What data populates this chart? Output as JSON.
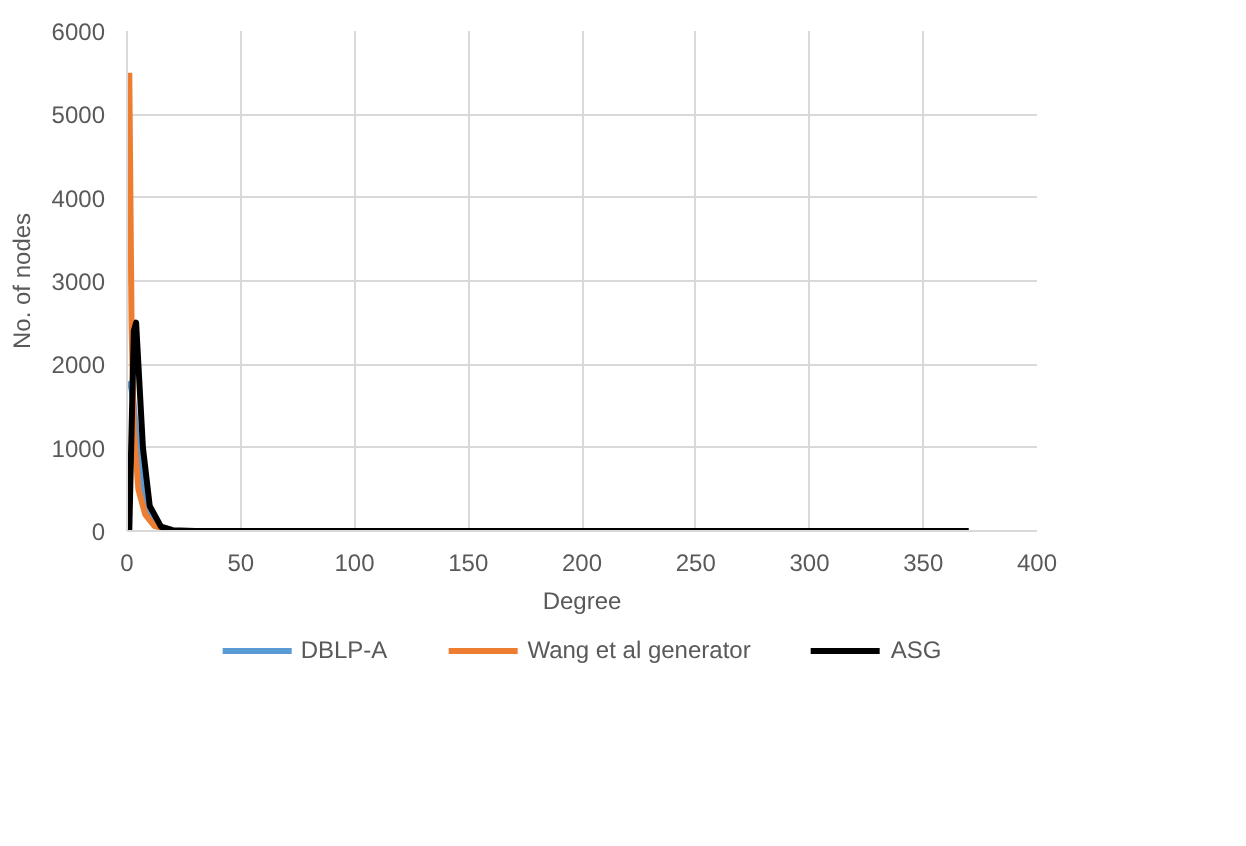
{
  "chart_data": {
    "type": "line",
    "xlabel": "Degree",
    "ylabel": "No. of nodes",
    "xlim": [
      0,
      400
    ],
    "ylim": [
      0,
      6000
    ],
    "xticks": [
      0,
      50,
      100,
      150,
      200,
      250,
      300,
      350,
      400
    ],
    "yticks": [
      0,
      1000,
      2000,
      3000,
      4000,
      5000,
      6000
    ],
    "grid": true,
    "legend": "bottom",
    "marker": "none",
    "line_style": "solid",
    "series": [
      {
        "name": "DBLP-A",
        "color": "#5b9bd5",
        "x": [
          1,
          2,
          3,
          5,
          8,
          12,
          20
        ],
        "values": [
          1800,
          1700,
          1500,
          900,
          300,
          80,
          10
        ]
      },
      {
        "name": "Wang et al generator",
        "color": "#ed7d31",
        "x": [
          1,
          2,
          3,
          5,
          8,
          12,
          20
        ],
        "values": [
          5500,
          2500,
          1200,
          500,
          200,
          60,
          10
        ]
      },
      {
        "name": "ASG",
        "color": "#000000",
        "x": [
          1,
          2,
          3,
          4,
          5,
          7,
          10,
          15,
          20,
          30,
          50,
          370
        ],
        "values": [
          0,
          1200,
          2400,
          2500,
          2000,
          1000,
          300,
          50,
          10,
          0,
          0,
          0
        ]
      }
    ]
  }
}
